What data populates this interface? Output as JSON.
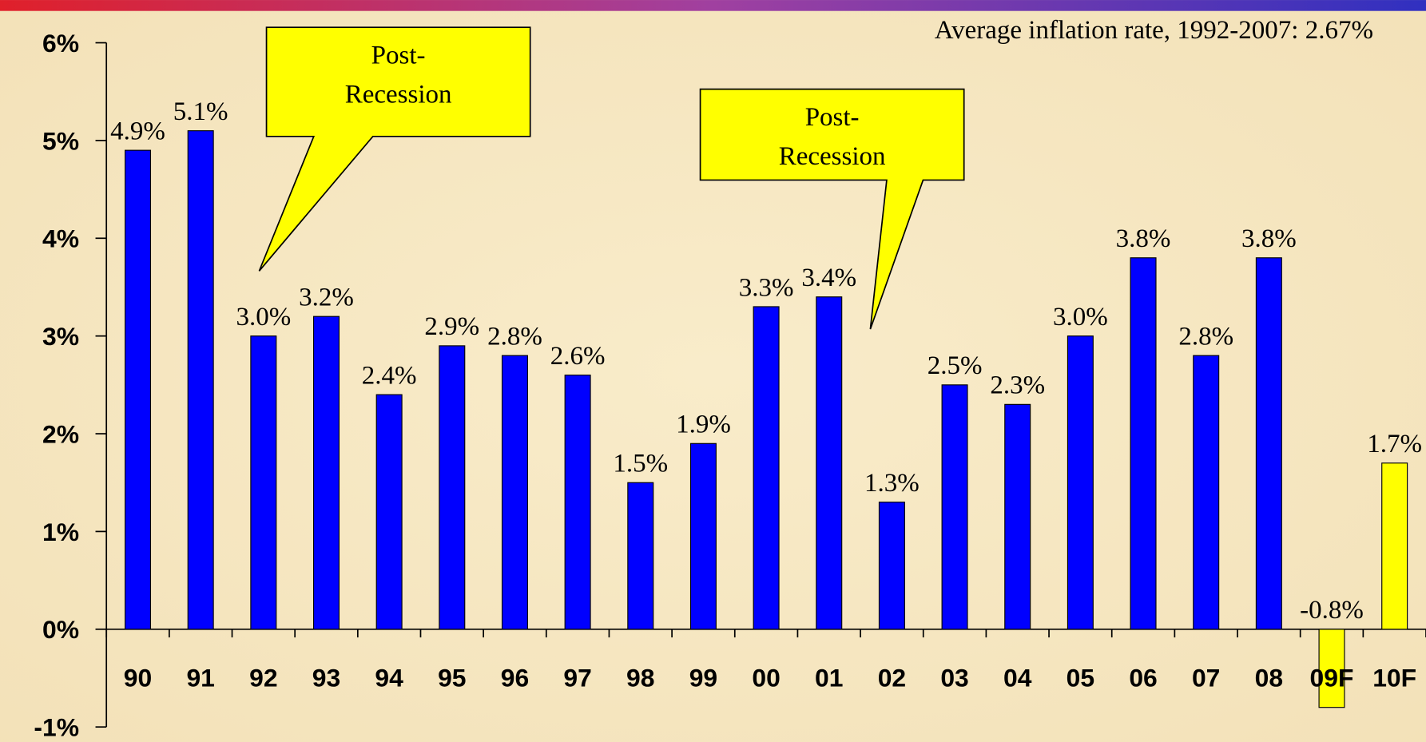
{
  "chart_data": {
    "type": "bar",
    "annotations": [
      "Average inflation rate, 1992-2007: 2.67%"
    ],
    "callouts": [
      [
        "Post-",
        "Recession"
      ],
      [
        "Post-",
        "Recession"
      ]
    ],
    "categories": [
      "90",
      "91",
      "92",
      "93",
      "94",
      "95",
      "96",
      "97",
      "98",
      "99",
      "00",
      "01",
      "02",
      "03",
      "04",
      "05",
      "06",
      "07",
      "08",
      "09F",
      "10F"
    ],
    "values": [
      4.9,
      5.1,
      3.0,
      3.2,
      2.4,
      2.9,
      2.8,
      2.6,
      1.5,
      1.9,
      3.3,
      3.4,
      1.3,
      2.5,
      2.3,
      3.0,
      3.8,
      2.8,
      3.8,
      -0.8,
      1.7
    ],
    "value_labels": [
      "4.9%",
      "5.1%",
      "3.0%",
      "3.2%",
      "2.4%",
      "2.9%",
      "2.8%",
      "2.6%",
      "1.5%",
      "1.9%",
      "3.3%",
      "3.4%",
      "1.3%",
      "2.5%",
      "2.3%",
      "3.0%",
      "3.8%",
      "2.8%",
      "3.8%",
      "-0.8%",
      "1.7%"
    ],
    "colors": [
      "#0000ff",
      "#0000ff",
      "#0000ff",
      "#0000ff",
      "#0000ff",
      "#0000ff",
      "#0000ff",
      "#0000ff",
      "#0000ff",
      "#0000ff",
      "#0000ff",
      "#0000ff",
      "#0000ff",
      "#0000ff",
      "#0000ff",
      "#0000ff",
      "#0000ff",
      "#0000ff",
      "#0000ff",
      "#ffff00",
      "#ffff00"
    ],
    "ylim": [
      -1,
      6
    ],
    "yticks": [
      {
        "value": -1,
        "label": "-1%"
      },
      {
        "value": 0,
        "label": "0%"
      },
      {
        "value": 1,
        "label": "1%"
      },
      {
        "value": 2,
        "label": "2%"
      },
      {
        "value": 3,
        "label": "3%"
      },
      {
        "value": 4,
        "label": "4%"
      },
      {
        "value": 5,
        "label": "5%"
      },
      {
        "value": 6,
        "label": "6%"
      }
    ]
  }
}
